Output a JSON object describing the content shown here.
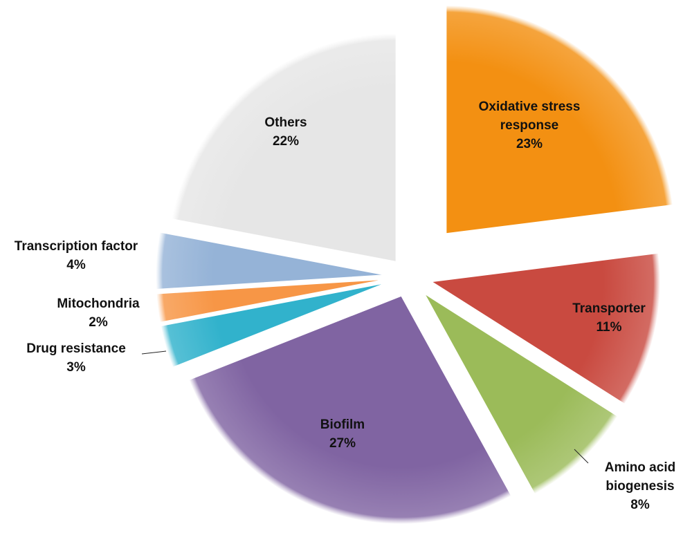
{
  "chart_data": {
    "type": "pie",
    "title": "",
    "start": "top",
    "direction": "clockwise",
    "exploded": true,
    "slices": [
      {
        "label": "Oxidative stress response",
        "lines": [
          "Oxidative stress",
          "response"
        ],
        "value": 23,
        "pct_label": "23%",
        "color": "#f39012"
      },
      {
        "label": "Transporter",
        "lines": [
          "Transporter"
        ],
        "value": 11,
        "pct_label": "11%",
        "color": "#c94a40"
      },
      {
        "label": "Amino acid biogenesis",
        "lines": [
          "Amino acid",
          "biogenesis"
        ],
        "value": 8,
        "pct_label": "8%",
        "color": "#9bbb59"
      },
      {
        "label": "Biofilm",
        "lines": [
          "Biofilm"
        ],
        "value": 27,
        "pct_label": "27%",
        "color": "#8064a2"
      },
      {
        "label": "Drug resistance",
        "lines": [
          "Drug resistance"
        ],
        "value": 3,
        "pct_label": "3%",
        "color": "#31b2cc"
      },
      {
        "label": "Mitochondria",
        "lines": [
          "Mitochondria"
        ],
        "value": 2,
        "pct_label": "2%",
        "color": "#f79646"
      },
      {
        "label": "Transcription factor",
        "lines": [
          "Transcription factor"
        ],
        "value": 4,
        "pct_label": "4%",
        "color": "#95b3d7"
      },
      {
        "label": "Others",
        "lines": [
          "Others"
        ],
        "value": 22,
        "pct_label": "22%",
        "color": "#e6e6e6"
      }
    ]
  }
}
